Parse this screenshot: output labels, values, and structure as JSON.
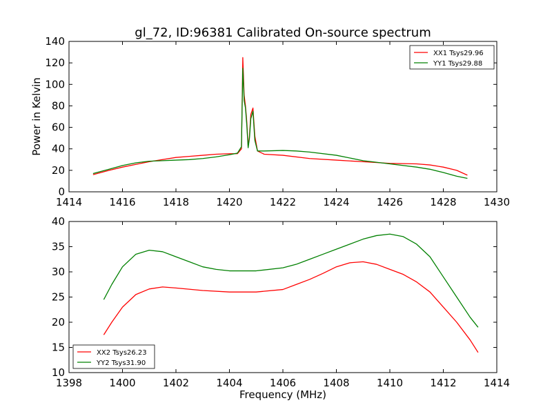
{
  "chart_data": [
    {
      "type": "line",
      "title": "gl_72, ID:96381 Calibrated On-source spectrum",
      "xlabel": "",
      "ylabel": "Power in Kelvin",
      "xlim": [
        1414,
        1430
      ],
      "ylim": [
        0,
        140
      ],
      "xticks": [
        "1414",
        "1416",
        "1418",
        "1420",
        "1422",
        "1424",
        "1426",
        "1428",
        "1430"
      ],
      "yticks": [
        "0",
        "20",
        "40",
        "60",
        "80",
        "100",
        "120",
        "140"
      ],
      "grid": false,
      "legend_position": "top-right",
      "series": [
        {
          "name": "XX1 Tsys29.96",
          "color": "#ff0000",
          "x": [
            1414.9,
            1415.5,
            1416,
            1416.5,
            1417,
            1417.5,
            1418,
            1418.5,
            1419,
            1419.5,
            1420,
            1420.3,
            1420.45,
            1420.5,
            1420.55,
            1420.6,
            1420.65,
            1420.7,
            1420.75,
            1420.8,
            1420.88,
            1420.95,
            1421.05,
            1421.3,
            1422,
            1423,
            1424,
            1425,
            1426,
            1427,
            1427.5,
            1428,
            1428.5,
            1428.9
          ],
          "y": [
            16,
            20,
            23,
            25.5,
            28,
            30,
            32,
            33,
            34,
            35,
            35.5,
            35.5,
            40,
            125,
            90,
            80,
            65,
            42,
            52,
            72,
            78,
            52,
            38,
            35,
            34,
            31,
            29.5,
            28,
            26.5,
            26,
            25,
            23,
            20,
            15.5
          ]
        },
        {
          "name": "YY1 Tsys29.88",
          "color": "#008000",
          "x": [
            1414.9,
            1415.5,
            1416,
            1416.5,
            1417,
            1417.5,
            1418,
            1418.5,
            1419,
            1419.5,
            1420,
            1420.3,
            1420.45,
            1420.5,
            1420.55,
            1420.6,
            1420.65,
            1420.7,
            1420.75,
            1420.8,
            1420.88,
            1420.95,
            1421.05,
            1421.3,
            1422,
            1422.5,
            1423,
            1424,
            1425,
            1426,
            1427,
            1427.5,
            1428,
            1428.5,
            1428.9
          ],
          "y": [
            17,
            21,
            24.5,
            27,
            28.5,
            29,
            29.5,
            30,
            31,
            32.5,
            34.5,
            36,
            42,
            115,
            85,
            78,
            62,
            41,
            50,
            68,
            75,
            48,
            38,
            38,
            38.5,
            38,
            37,
            34,
            29,
            26,
            23,
            21,
            18,
            14.5,
            12.5
          ]
        }
      ]
    },
    {
      "type": "line",
      "title": "",
      "xlabel": "Frequency (MHz)",
      "ylabel": "",
      "xlim": [
        1398,
        1414
      ],
      "ylim": [
        10,
        40
      ],
      "xticks": [
        "1398",
        "1400",
        "1402",
        "1404",
        "1406",
        "1408",
        "1410",
        "1412",
        "1414"
      ],
      "yticks": [
        "10",
        "15",
        "20",
        "25",
        "30",
        "35",
        "40"
      ],
      "grid": false,
      "legend_position": "bottom-left",
      "series": [
        {
          "name": "XX2 Tsys26.23",
          "color": "#ff0000",
          "x": [
            1399.3,
            1399.6,
            1400,
            1400.5,
            1401,
            1401.5,
            1402,
            1403,
            1404,
            1405,
            1406,
            1406.5,
            1407,
            1407.5,
            1408,
            1408.5,
            1409,
            1409.5,
            1410,
            1410.5,
            1411,
            1411.5,
            1412,
            1412.5,
            1413,
            1413.3
          ],
          "y": [
            17.5,
            20,
            23,
            25.5,
            26.6,
            27,
            26.8,
            26.3,
            26,
            26,
            26.5,
            27.5,
            28.5,
            29.7,
            31,
            31.8,
            32,
            31.5,
            30.5,
            29.5,
            28,
            26,
            23,
            20,
            16.5,
            14
          ]
        },
        {
          "name": "YY2 Tsys31.90",
          "color": "#008000",
          "x": [
            1399.3,
            1399.6,
            1400,
            1400.5,
            1401,
            1401.5,
            1402,
            1402.5,
            1403,
            1403.5,
            1404,
            1405,
            1406,
            1406.5,
            1407,
            1407.5,
            1408,
            1408.5,
            1409,
            1409.5,
            1410,
            1410.5,
            1411,
            1411.5,
            1412,
            1412.5,
            1413,
            1413.3
          ],
          "y": [
            24.5,
            27.5,
            31,
            33.5,
            34.3,
            34,
            33,
            32,
            31,
            30.5,
            30.2,
            30.2,
            30.8,
            31.5,
            32.5,
            33.5,
            34.5,
            35.5,
            36.5,
            37.2,
            37.5,
            37,
            35.5,
            33,
            29,
            25,
            21,
            19
          ]
        }
      ]
    }
  ]
}
